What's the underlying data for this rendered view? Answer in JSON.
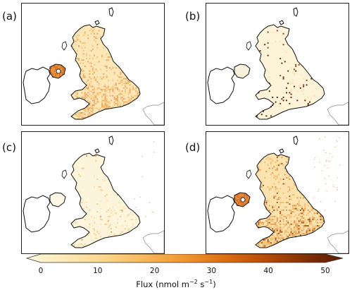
{
  "panels": [
    {
      "label": "(a)",
      "variant": "a"
    },
    {
      "label": "(b)",
      "variant": "b"
    },
    {
      "label": "(c)",
      "variant": "c"
    },
    {
      "label": "(d)",
      "variant": "d"
    }
  ],
  "colorbar": {
    "ticks": [
      "0",
      "10",
      "20",
      "30",
      "40",
      "50"
    ],
    "label_main": "Flux (nmol m",
    "label_exp1": "−2",
    "label_mid": " s",
    "label_exp2": "−1",
    "label_end": ")",
    "colors": [
      "#fff7dc",
      "#fdeab5",
      "#fbd58a",
      "#f7b75a",
      "#ef9531",
      "#dc6f12",
      "#b94c06",
      "#873105",
      "#5a1c02"
    ]
  }
}
